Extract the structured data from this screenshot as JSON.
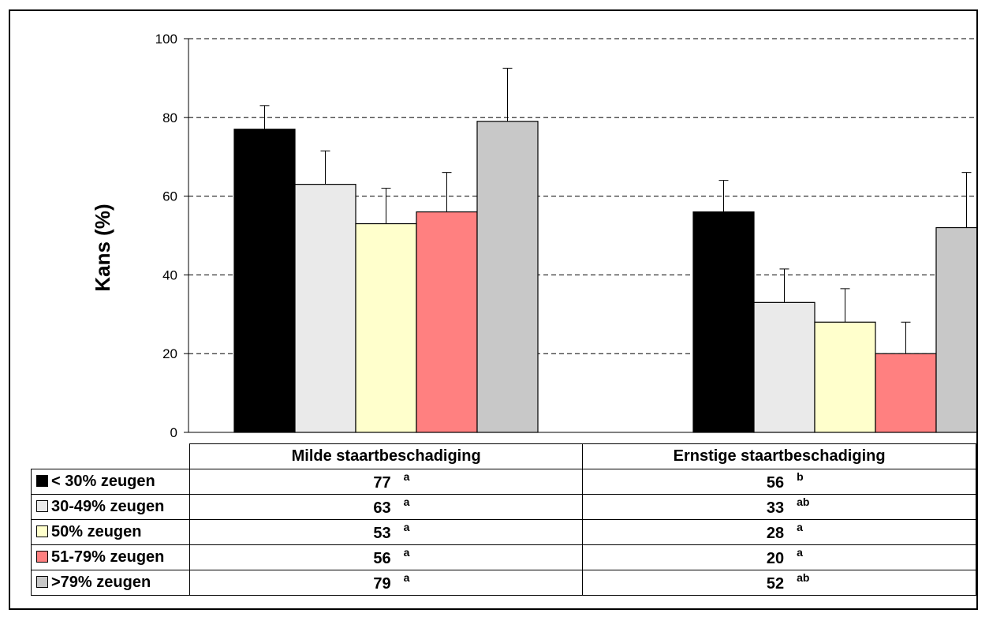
{
  "chart_data": {
    "type": "bar",
    "title": "",
    "xlabel": "",
    "ylabel": "Kans (%)",
    "ylim": [
      0,
      100
    ],
    "yticks": [
      0,
      20,
      40,
      60,
      80,
      100
    ],
    "grid": true,
    "categories": [
      "Milde staartbeschadiging",
      "Ernstige staartbeschadiging"
    ],
    "series": [
      {
        "name": "< 30% zeugen",
        "color": "#000000",
        "values": [
          77,
          56
        ],
        "errors": [
          6,
          8
        ],
        "significance": [
          "a",
          "b"
        ]
      },
      {
        "name": "30-49% zeugen",
        "color": "#eaeaea",
        "values": [
          63,
          33
        ],
        "errors": [
          8.5,
          8.5
        ],
        "significance": [
          "a",
          "ab"
        ]
      },
      {
        "name": "50% zeugen",
        "color": "#ffffcc",
        "values": [
          53,
          28
        ],
        "errors": [
          9,
          8.5
        ],
        "significance": [
          "a",
          "a"
        ]
      },
      {
        "name": "51-79% zeugen",
        "color": "#ff8080",
        "values": [
          56,
          20
        ],
        "errors": [
          10,
          8
        ],
        "significance": [
          "a",
          "a"
        ]
      },
      {
        "name": ">79% zeugen",
        "color": "#c8c8c8",
        "values": [
          79,
          52
        ],
        "errors": [
          13.5,
          14
        ],
        "significance": [
          "a",
          "ab"
        ]
      }
    ]
  }
}
